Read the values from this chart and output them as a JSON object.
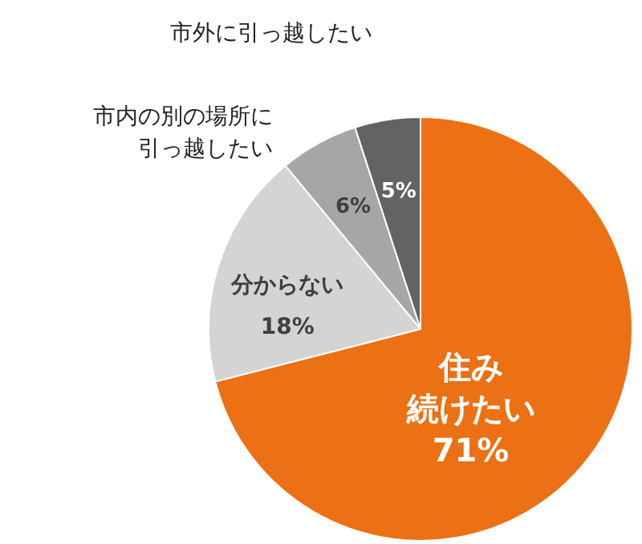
{
  "chart_data": {
    "type": "pie",
    "categories": [
      "住み続けたい",
      "分からない",
      "市内の別の場所に引っ越したい",
      "市外に引っ越したい"
    ],
    "values": [
      71,
      18,
      6,
      5
    ],
    "colors": [
      "#ec7014",
      "#d4d4d4",
      "#a6a6a6",
      "#636363"
    ],
    "value_labels": [
      "71%",
      "18%",
      "6%",
      "5%"
    ]
  }
}
